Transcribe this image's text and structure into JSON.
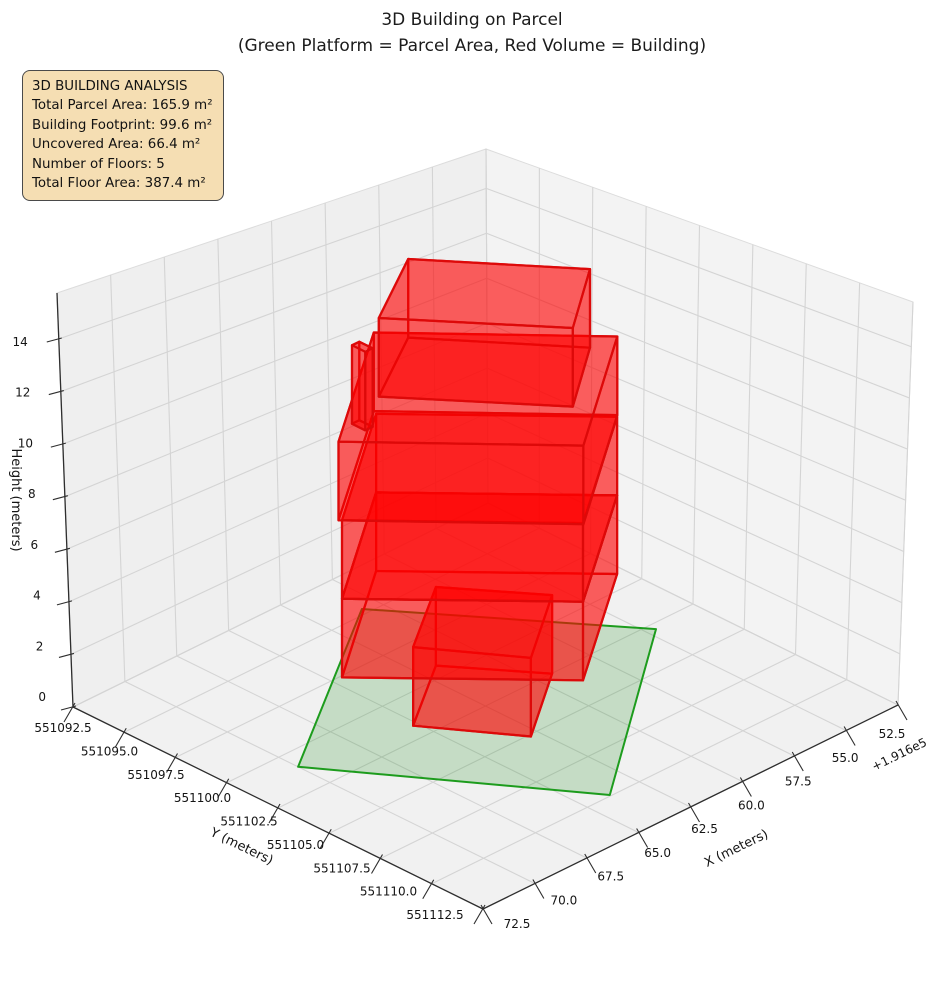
{
  "title": {
    "line1": "3D Building on Parcel",
    "line2": "(Green Platform = Parcel Area, Red Volume = Building)"
  },
  "info_box": {
    "lines": [
      "3D BUILDING ANALYSIS",
      "Total Parcel Area: 165.9 m²",
      "Building Footprint: 99.6 m²",
      "Uncovered Area: 66.4 m²",
      "Number of Floors: 5",
      "Total Floor Area: 387.4 m²"
    ],
    "bg_color": "#f5deb3",
    "border_color": "#4a4a4a"
  },
  "chart_data": {
    "type": "3d-building-extrusion",
    "title": "3D Building on Parcel\n(Green Platform = Parcel Area, Red Volume = Building)",
    "legend": "none",
    "grid": true,
    "axes": {
      "x": {
        "label": "X (meters)",
        "tick_labels": [
          "72.5",
          "70.0",
          "67.5",
          "65.0",
          "62.5",
          "60.0",
          "57.5",
          "55.0",
          "52.5"
        ],
        "tick_values": [
          72.5,
          70.0,
          67.5,
          65.0,
          62.5,
          60.0,
          57.5,
          55.0,
          52.5
        ],
        "offset_text": "+1.916e5",
        "range": [
          72.5,
          52.5
        ],
        "direction": "reversed"
      },
      "y": {
        "label": "Y (meters)",
        "tick_labels": [
          "551092.5",
          "551095.0",
          "551097.5",
          "551100.0",
          "551102.5",
          "551105.0",
          "551107.5",
          "551110.0",
          "551112.5"
        ],
        "tick_values": [
          551092.5,
          551095.0,
          551097.5,
          551100.0,
          551102.5,
          551105.0,
          551107.5,
          551110.0,
          551112.5
        ],
        "range": [
          551092.5,
          551112.5
        ]
      },
      "z": {
        "label": "Height (meters)",
        "tick_labels": [
          "0",
          "2",
          "4",
          "6",
          "8",
          "10",
          "12",
          "14"
        ],
        "tick_values": [
          0,
          2,
          4,
          6,
          8,
          10,
          12,
          14
        ],
        "range": [
          0,
          15.75
        ]
      }
    },
    "parcel": {
      "polygon_xy": [
        [
          70.0,
          551100.95
        ],
        [
          63.86,
          551109.94
        ],
        [
          54.62,
          551102.84
        ],
        [
          60.73,
          551094.68
        ]
      ],
      "fill": "#008000",
      "fill_opacity": 0.18,
      "edge": "#1d9c1d"
    },
    "building": {
      "fill": "#ff0000",
      "fill_opacity": 0.38,
      "edge": "#dc0a0a",
      "floor_height_m": 3,
      "floors": [
        {
          "name": "floor-1",
          "z0": 0,
          "z1": 3,
          "footprint": [
            [
              65.21,
              551101.71
            ],
            [
              61.72,
              551099.29
            ],
            [
              59.31,
              551102.52
            ],
            [
              62.9,
              551105.12
            ]
          ]
        },
        {
          "name": "floor-2",
          "z0": 3,
          "z1": 6,
          "footprint": [
            [
              68.41,
              551101.48
            ],
            [
              62.74,
              551107.5
            ],
            [
              56.71,
              551103.06
            ],
            [
              62.38,
              551097.04
            ]
          ]
        },
        {
          "name": "floor-3",
          "z0": 6,
          "z1": 9,
          "footprint": [
            [
              68.41,
              551101.48
            ],
            [
              62.74,
              551107.5
            ],
            [
              56.71,
              551103.06
            ],
            [
              62.38,
              551097.04
            ]
          ]
        },
        {
          "name": "floor-4",
          "z0": 9,
          "z1": 12,
          "footprint": [
            [
              68.5,
              551101.4
            ],
            [
              62.78,
              551107.56
            ],
            [
              56.62,
              551102.98
            ],
            [
              62.3,
              551096.85
            ]
          ]
        },
        {
          "name": "floor-4-annex",
          "z0": 9,
          "z1": 12,
          "footprint": [
            [
              63.45,
              551096.95
            ],
            [
              63.45,
              551097.6
            ],
            [
              63.1,
              551097.6
            ],
            [
              63.1,
              551096.95
            ]
          ]
        },
        {
          "name": "floor-5",
          "z0": 12,
          "z1": 15,
          "footprint": [
            [
              65.32,
              551100.15
            ],
            [
              61.72,
              551097.94
            ],
            [
              57.83,
              551102.87
            ],
            [
              61.13,
              551105.37
            ]
          ]
        }
      ]
    },
    "stats": {
      "total_parcel_area_m2": 165.9,
      "building_footprint_m2": 99.6,
      "uncovered_area_m2": 66.4,
      "number_of_floors": 5,
      "total_floor_area_m2": 387.4
    },
    "style": {
      "pane_left": "#efefef",
      "pane_right": "#f3f3f3",
      "pane_floor": "#f1f1f1",
      "pane_edge": "#dcdcdc",
      "grid": "#d4d4d4",
      "spine": "#2e2e2e",
      "tick_text": "#141414",
      "label_text": "#141414"
    }
  }
}
